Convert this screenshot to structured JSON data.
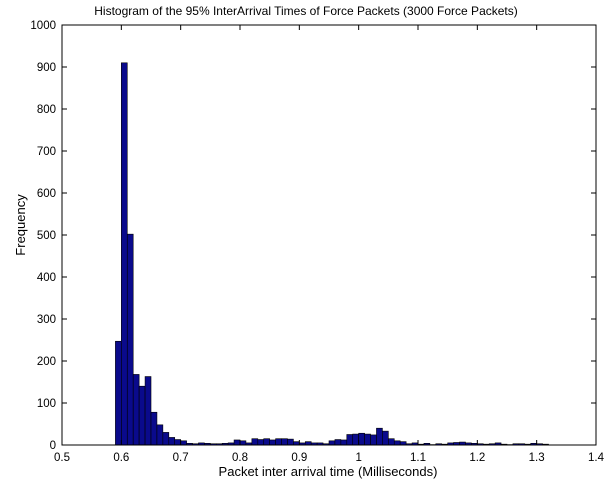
{
  "chart_data": {
    "type": "bar",
    "title": "Histogram of the 95% InterArrival Times of Force Packets (3000 Force Packets)",
    "xlabel": "Packet inter arrival time (Milliseconds)",
    "ylabel": "Frequency",
    "xlim": [
      0.5,
      1.4
    ],
    "ylim": [
      0,
      1000
    ],
    "xticks": [
      "0.5",
      "0.6",
      "0.7",
      "0.8",
      "0.9",
      "1",
      "1.1",
      "1.2",
      "1.3",
      "1.4"
    ],
    "yticks": [
      "0",
      "100",
      "200",
      "300",
      "400",
      "500",
      "600",
      "700",
      "800",
      "900",
      "1000"
    ],
    "grid": false,
    "bar_color": "#0a0a8c",
    "bin_width": 0.01,
    "bin_centers": [
      0.595,
      0.605,
      0.615,
      0.625,
      0.635,
      0.645,
      0.655,
      0.665,
      0.675,
      0.685,
      0.695,
      0.705,
      0.715,
      0.725,
      0.735,
      0.745,
      0.755,
      0.765,
      0.775,
      0.785,
      0.795,
      0.805,
      0.815,
      0.825,
      0.835,
      0.845,
      0.855,
      0.865,
      0.875,
      0.885,
      0.895,
      0.905,
      0.915,
      0.925,
      0.935,
      0.945,
      0.955,
      0.965,
      0.975,
      0.985,
      0.995,
      1.005,
      1.015,
      1.025,
      1.035,
      1.045,
      1.055,
      1.065,
      1.075,
      1.085,
      1.095,
      1.105,
      1.115,
      1.125,
      1.135,
      1.145,
      1.155,
      1.165,
      1.175,
      1.185,
      1.195,
      1.205,
      1.215,
      1.225,
      1.235,
      1.245,
      1.255,
      1.265,
      1.275,
      1.285,
      1.295,
      1.305,
      1.315
    ],
    "frequencies": [
      247,
      910,
      502,
      168,
      140,
      163,
      78,
      48,
      30,
      18,
      13,
      10,
      4,
      3,
      5,
      4,
      3,
      3,
      4,
      5,
      12,
      10,
      5,
      15,
      13,
      15,
      12,
      15,
      15,
      14,
      8,
      5,
      8,
      5,
      5,
      3,
      10,
      13,
      12,
      25,
      26,
      28,
      26,
      24,
      40,
      33,
      15,
      10,
      8,
      3,
      5,
      2,
      4,
      1,
      3,
      2,
      5,
      6,
      7,
      5,
      4,
      3,
      2,
      3,
      5,
      2,
      1,
      3,
      3,
      2,
      4,
      3,
      2
    ]
  }
}
